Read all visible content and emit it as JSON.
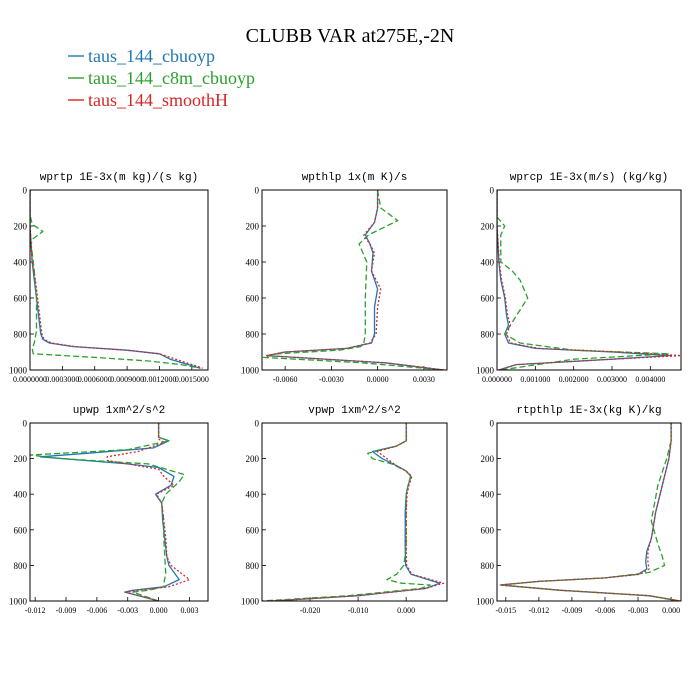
{
  "chart_data": {
    "type": "line",
    "title": "CLUBB VAR at275E,-2N",
    "legend": {
      "placement": "top-left",
      "entries": [
        {
          "name": "taus_144_cbuoyp",
          "color": "#1f77b4",
          "dash": "solid"
        },
        {
          "name": "taus_144_c8m_cbuoyp",
          "color": "#2ca02c",
          "dash": "dash"
        },
        {
          "name": "taus_144_smoothH",
          "color": "#d62728",
          "dash": "dot"
        }
      ]
    },
    "y_axis": {
      "range": [
        0,
        1000
      ],
      "inverted": true,
      "ticks": [
        0,
        200,
        400,
        600,
        800,
        1000
      ]
    },
    "panels": [
      {
        "title": "wprtp  1E-3x(m kg)/(s kg)",
        "xlim": [
          0.0,
          0.00165
        ],
        "xticks": [
          0.0,
          0.0003,
          0.0006,
          0.0009,
          0.0012,
          0.0015
        ],
        "xtick_labels": [
          "0.0000000",
          "0.0003000",
          "0.0006000",
          "0.0009000",
          "0.0012000",
          "0.0015000"
        ],
        "series": [
          {
            "name": "taus_144_cbuoyp",
            "x": [
              0,
              0,
              2e-05,
              4e-05,
              6e-05,
              8e-05,
              0.0001,
              0.00012,
              0.00018,
              0.0004,
              0.0009,
              0.0012,
              0.0013,
              0.00158
            ],
            "y": [
              0,
              200,
              400,
              500,
              600,
              700,
              800,
              830,
              850,
              870,
              890,
              910,
              940,
              990
            ]
          },
          {
            "name": "taus_144_c8m_cbuoyp",
            "x": [
              0,
              0,
              2e-05,
              0.00012,
              3e-05,
              1e-05,
              2e-05,
              4e-05,
              6e-05,
              6e-05,
              4e-05,
              2e-05,
              3e-05,
              0.0006,
              0.0011,
              0.0014,
              0.00158
            ],
            "y": [
              0,
              140,
              190,
              230,
              270,
              300,
              350,
              450,
              600,
              780,
              850,
              880,
              910,
              930,
              950,
              970,
              990
            ]
          },
          {
            "name": "taus_144_smoothH",
            "x": [
              0,
              0,
              2e-05,
              5e-05,
              7e-05,
              9e-05,
              0.00011,
              0.00013,
              0.0002,
              0.00042,
              0.0009,
              0.0012,
              0.00135,
              0.0016
            ],
            "y": [
              0,
              200,
              400,
              500,
              600,
              700,
              800,
              830,
              850,
              870,
              890,
              910,
              940,
              990
            ]
          }
        ]
      },
      {
        "title": "wpthlp  1x(m K)/s",
        "xlim": [
          -0.0075,
          0.0045
        ],
        "xticks": [
          -0.006,
          -0.003,
          0.0,
          0.003
        ],
        "xtick_labels": [
          "-0.0060",
          "-0.0030",
          "0.0000",
          "0.0030"
        ],
        "series": [
          {
            "name": "taus_144_cbuoyp",
            "x": [
              0,
              0,
              -0.0002,
              -0.0008,
              -0.0005,
              -0.0003,
              -0.0004,
              0,
              -0.0002,
              -0.0002,
              -0.0004,
              -0.002,
              -0.006,
              -0.0072,
              0.0005,
              0.0043
            ],
            "y": [
              0,
              100,
              180,
              250,
              300,
              350,
              450,
              550,
              650,
              800,
              850,
              880,
              900,
              920,
              960,
              1000
            ]
          },
          {
            "name": "taus_144_c8m_cbuoyp",
            "x": [
              0,
              0.0002,
              0.0013,
              -0.0006,
              -0.0012,
              -0.0007,
              -0.0008,
              -0.0008,
              -0.0009,
              -0.0011,
              -0.0025,
              -0.0065,
              -0.0074,
              -0.001,
              0.0043
            ],
            "y": [
              0,
              100,
              170,
              250,
              300,
              400,
              600,
              800,
              850,
              870,
              890,
              910,
              930,
              960,
              1000
            ]
          },
          {
            "name": "taus_144_smoothH",
            "x": [
              0,
              0,
              -0.0002,
              -0.0009,
              -0.0005,
              -0.0002,
              -0.0004,
              0.0002,
              0,
              -0.0001,
              -0.0005,
              -0.002,
              -0.006,
              -0.0072,
              0.0005,
              0.0043
            ],
            "y": [
              0,
              100,
              180,
              250,
              300,
              350,
              450,
              550,
              650,
              800,
              850,
              880,
              900,
              920,
              960,
              1000
            ]
          }
        ]
      },
      {
        "title": "wprcp  1E-3x(m/s) (kg/kg)",
        "xlim": [
          0.0,
          0.0048
        ],
        "xticks": [
          0.0,
          0.001,
          0.002,
          0.003,
          0.004
        ],
        "xtick_labels": [
          "0.000000",
          "0.001000",
          "0.002000",
          "0.003000",
          "0.004000"
        ],
        "series": [
          {
            "name": "taus_144_cbuoyp",
            "x": [
              0,
              0,
              5e-05,
              0.0001,
              0.0002,
              0.00025,
              0.0003,
              0.0002,
              0.0003,
              0.001,
              0.003,
              0.0045,
              0.003,
              0.0005,
              5e-05
            ],
            "y": [
              0,
              200,
              400,
              500,
              600,
              700,
              750,
              800,
              850,
              880,
              900,
              920,
              940,
              970,
              1000
            ]
          },
          {
            "name": "taus_144_c8m_cbuoyp",
            "x": [
              0,
              0,
              0.0002,
              0.0001,
              0.0001,
              0.0004,
              0.0006,
              0.0008,
              0.0005,
              0.0002,
              0.0006,
              0.002,
              0.0045,
              0.002,
              0.0001
            ],
            "y": [
              0,
              150,
              200,
              250,
              400,
              450,
              500,
              600,
              700,
              800,
              850,
              890,
              910,
              940,
              1000
            ]
          },
          {
            "name": "taus_144_smoothH",
            "x": [
              0,
              0,
              6e-05,
              0.00012,
              0.00022,
              0.00028,
              0.00035,
              0.00025,
              0.00035,
              0.0011,
              0.0032,
              0.0048,
              0.003,
              0.0005,
              5e-05
            ],
            "y": [
              0,
              200,
              400,
              500,
              600,
              700,
              750,
              800,
              850,
              880,
              900,
              920,
              940,
              970,
              1000
            ]
          }
        ]
      },
      {
        "title": "upwp  1xm^2/s^2",
        "xlim": [
          -0.0125,
          0.0048
        ],
        "xticks": [
          -0.012,
          -0.009,
          -0.006,
          -0.003,
          0.0,
          0.003
        ],
        "xtick_labels": [
          "-0.012",
          "-0.009",
          "-0.006",
          "-0.003",
          "0.000",
          "0.003"
        ],
        "series": [
          {
            "name": "taus_144_cbuoyp",
            "x": [
              0,
              0,
              0.001,
              -0.0005,
              -0.007,
              -0.0115,
              -0.003,
              0,
              0.0015,
              0.0012,
              -0.0003,
              0.0003,
              0.0004,
              0.0006,
              0.0008,
              0.001,
              0.002,
              0.0005,
              -0.0025,
              -0.0033,
              0
            ],
            "y": [
              0,
              80,
              100,
              140,
              170,
              190,
              230,
              250,
              300,
              350,
              400,
              450,
              550,
              650,
              750,
              800,
              880,
              920,
              940,
              950,
              1000
            ]
          },
          {
            "name": "taus_144_c8m_cbuoyp",
            "x": [
              0,
              0,
              0.001,
              -0.003,
              -0.0125,
              -0.0095,
              -0.001,
              0.0025,
              0.002,
              0.0007,
              0.0003,
              0.0005,
              0.0005,
              0.0006,
              0.0007,
              0.0005,
              0.0005,
              -0.001,
              -0.0025,
              0
            ],
            "y": [
              0,
              80,
              100,
              150,
              180,
              200,
              230,
              290,
              330,
              400,
              450,
              550,
              650,
              750,
              850,
              900,
              920,
              940,
              950,
              1000
            ]
          },
          {
            "name": "taus_144_smoothH",
            "x": [
              0,
              0,
              0.0005,
              -0.002,
              -0.005,
              -0.005,
              -0.002,
              0,
              0.0005,
              0.0015,
              -0.0002,
              0.0003,
              0.0005,
              0.0007,
              0.0008,
              0.0012,
              0.003,
              0.001,
              -0.002,
              -0.0032,
              0
            ],
            "y": [
              0,
              90,
              110,
              160,
              190,
              210,
              240,
              260,
              300,
              350,
              400,
              450,
              550,
              650,
              750,
              800,
              880,
              920,
              940,
              950,
              1000
            ]
          }
        ]
      },
      {
        "title": "vpwp  1xm^2/s^2",
        "xlim": [
          -0.03,
          0.0085
        ],
        "xticks": [
          -0.02,
          -0.01,
          0.0
        ],
        "xtick_labels": [
          "-0.020",
          "-0.010",
          "0.000"
        ],
        "series": [
          {
            "name": "taus_144_cbuoyp",
            "x": [
              0,
              0,
              -0.002,
              -0.007,
              -0.005,
              -0.002,
              0,
              0.001,
              0.0004,
              0,
              -0.0002,
              -0.0002,
              -0.0001,
              0.001,
              0.007,
              0.004,
              -0.01,
              -0.028
            ],
            "y": [
              0,
              100,
              130,
              160,
              200,
              240,
              270,
              300,
              350,
              400,
              500,
              700,
              800,
              850,
              900,
              930,
              970,
              1000
            ]
          },
          {
            "name": "taus_144_c8m_cbuoyp",
            "x": [
              0,
              0,
              -0.002,
              -0.008,
              -0.007,
              -0.003,
              0,
              0.0009,
              0.0004,
              0,
              0,
              0,
              -0.0005,
              -0.002,
              -0.004,
              -0.001,
              0.005,
              0.003,
              -0.012,
              -0.03
            ],
            "y": [
              0,
              100,
              130,
              170,
              200,
              230,
              270,
              300,
              350,
              400,
              500,
              700,
              800,
              850,
              880,
              900,
              910,
              930,
              970,
              1000
            ]
          },
          {
            "name": "taus_144_smoothH",
            "x": [
              0,
              0,
              -0.002,
              -0.006,
              -0.004,
              -0.002,
              0,
              0.0012,
              0.0006,
              0.0002,
              0,
              0,
              0.0001,
              0.0012,
              0.0078,
              0.004,
              -0.01,
              -0.028
            ],
            "y": [
              0,
              100,
              130,
              160,
              200,
              240,
              270,
              300,
              350,
              400,
              500,
              700,
              800,
              850,
              900,
              930,
              970,
              1000
            ]
          }
        ]
      },
      {
        "title": "rtpthlp  1E-3x(kg K)/kg",
        "xlim": [
          -0.0158,
          0.0009
        ],
        "xticks": [
          -0.015,
          -0.012,
          -0.009,
          -0.006,
          -0.003,
          0.0
        ],
        "xtick_labels": [
          "-0.015",
          "-0.012",
          "-0.009",
          "-0.006",
          "-0.003",
          "0.000"
        ],
        "series": [
          {
            "name": "taus_144_cbuoyp",
            "x": [
              0,
              0,
              -0.0002,
              -0.0008,
              -0.0014,
              -0.0018,
              -0.0022,
              -0.0023,
              -0.0022,
              -0.003,
              -0.006,
              -0.012,
              -0.0155,
              -0.01,
              -0.002,
              0.0008
            ],
            "y": [
              0,
              100,
              200,
              350,
              500,
              650,
              720,
              780,
              820,
              850,
              870,
              890,
              910,
              940,
              970,
              1000
            ]
          },
          {
            "name": "taus_144_c8m_cbuoyp",
            "x": [
              0,
              0,
              -0.0004,
              -0.0012,
              -0.0018,
              -0.0012,
              -0.0008,
              -0.0006,
              -0.002,
              -0.006,
              -0.012,
              -0.0155,
              -0.01,
              -0.002,
              0.0008
            ],
            "y": [
              0,
              100,
              200,
              350,
              550,
              680,
              750,
              800,
              840,
              870,
              890,
              910,
              940,
              970,
              1000
            ]
          },
          {
            "name": "taus_144_smoothH",
            "x": [
              0,
              0,
              -0.0002,
              -0.0008,
              -0.0014,
              -0.0018,
              -0.0021,
              -0.0021,
              -0.002,
              -0.0028,
              -0.006,
              -0.012,
              -0.0155,
              -0.01,
              -0.002,
              0.0008
            ],
            "y": [
              0,
              100,
              200,
              350,
              500,
              650,
              720,
              780,
              820,
              850,
              870,
              890,
              910,
              940,
              970,
              1000
            ]
          }
        ]
      }
    ]
  }
}
